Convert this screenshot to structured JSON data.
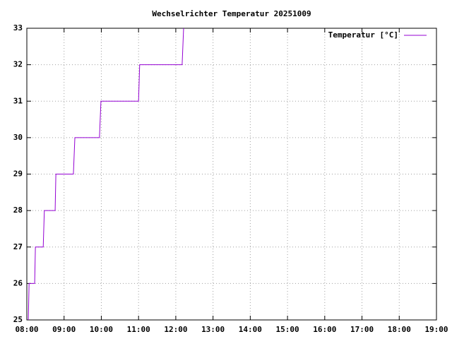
{
  "chart_data": {
    "type": "line",
    "title": "Wechselrichter Temperatur 20251009",
    "x": [
      8.04,
      8.06,
      8.21,
      8.23,
      8.44,
      8.47,
      8.76,
      8.78,
      9.25,
      9.29,
      9.95,
      9.99,
      11.0,
      11.03,
      12.17,
      12.21
    ],
    "series": [
      {
        "name": "Temperatur [°C]",
        "color": "#9400d3",
        "values": [
          25,
          26,
          26,
          27,
          27,
          28,
          28,
          29,
          29,
          30,
          30,
          31,
          31,
          32,
          32,
          33
        ]
      }
    ],
    "xlim": [
      8,
      19
    ],
    "xticks": [
      {
        "value": 8,
        "label": "08:00"
      },
      {
        "value": 9,
        "label": "09:00"
      },
      {
        "value": 10,
        "label": "10:00"
      },
      {
        "value": 11,
        "label": "11:00"
      },
      {
        "value": 12,
        "label": "12:00"
      },
      {
        "value": 13,
        "label": "13:00"
      },
      {
        "value": 14,
        "label": "14:00"
      },
      {
        "value": 15,
        "label": "15:00"
      },
      {
        "value": 16,
        "label": "16:00"
      },
      {
        "value": 17,
        "label": "17:00"
      },
      {
        "value": 18,
        "label": "18:00"
      },
      {
        "value": 19,
        "label": "19:00"
      }
    ],
    "ylim": [
      25,
      33
    ],
    "yticks": [
      25,
      26,
      27,
      28,
      29,
      30,
      31,
      32,
      33
    ],
    "grid": true,
    "legend": "top-right"
  }
}
